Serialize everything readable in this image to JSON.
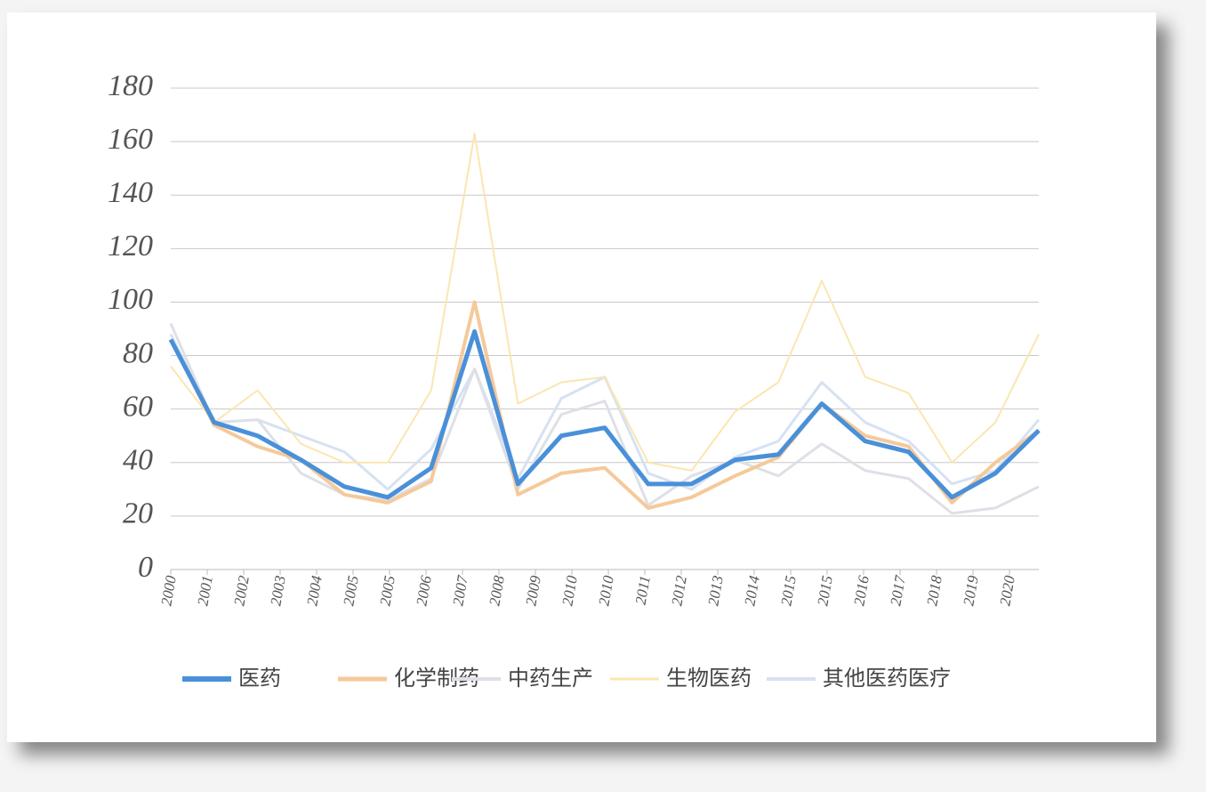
{
  "chart_data": {
    "type": "line",
    "x_labels": [
      "2000",
      "2001",
      "2002",
      "2003",
      "2004",
      "2005",
      "2005",
      "2006",
      "2007",
      "2008",
      "2009",
      "2010",
      "2010",
      "2011",
      "2012",
      "2013",
      "2014",
      "2015",
      "2015",
      "2016",
      "2017",
      "2018",
      "2019",
      "2020"
    ],
    "ylim": [
      0,
      180
    ],
    "yticks": [
      0,
      20,
      40,
      60,
      80,
      100,
      120,
      140,
      160,
      180
    ],
    "grid": true,
    "series": [
      {
        "name": "医药",
        "color": "#4a90d9",
        "width": 5,
        "values": [
          86,
          55,
          50,
          41,
          31,
          27,
          38,
          89,
          32,
          50,
          53,
          32,
          32,
          41,
          43,
          62,
          48,
          44,
          27,
          36,
          52
        ]
      },
      {
        "name": "化学制药",
        "color": "#f5c99a",
        "width": 4,
        "values": [
          86,
          54,
          46,
          41,
          28,
          25,
          33,
          100,
          28,
          36,
          38,
          23,
          27,
          35,
          42,
          62,
          50,
          46,
          25,
          40,
          52
        ]
      },
      {
        "name": "中药生产",
        "color": "#dde0e6",
        "width": 3,
        "values": [
          92,
          55,
          56,
          36,
          28,
          26,
          34,
          75,
          30,
          58,
          63,
          24,
          35,
          41,
          35,
          47,
          37,
          34,
          21,
          23,
          31
        ]
      },
      {
        "name": "生物医药",
        "color": "#fbe6b0",
        "width": 2,
        "values": [
          76,
          55,
          67,
          47,
          40,
          40,
          67,
          163,
          62,
          70,
          72,
          40,
          37,
          59,
          70,
          108,
          72,
          66,
          40,
          55,
          88
        ]
      },
      {
        "name": "其他医药医疗",
        "color": "#d6e2f2",
        "width": 3,
        "values": [
          88,
          55,
          56,
          50,
          44,
          30,
          45,
          75,
          34,
          64,
          72,
          36,
          30,
          42,
          48,
          70,
          55,
          48,
          32,
          37,
          56
        ]
      }
    ]
  }
}
